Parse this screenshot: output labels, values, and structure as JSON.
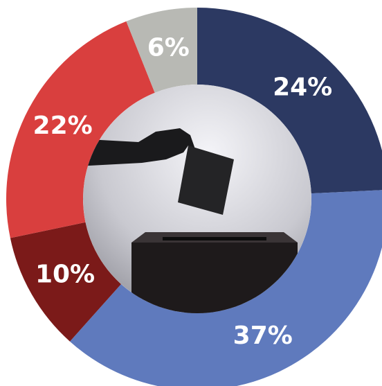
{
  "chart_data": {
    "type": "donut",
    "values": [
      24,
      37,
      10,
      22,
      6
    ],
    "value_labels": [
      "24%",
      "37%",
      "10%",
      "22%",
      "6%"
    ],
    "colors": [
      "#2c3962",
      "#5f7abd",
      "#7b1a19",
      "#d93f3e",
      "#b8b9b4"
    ]
  }
}
